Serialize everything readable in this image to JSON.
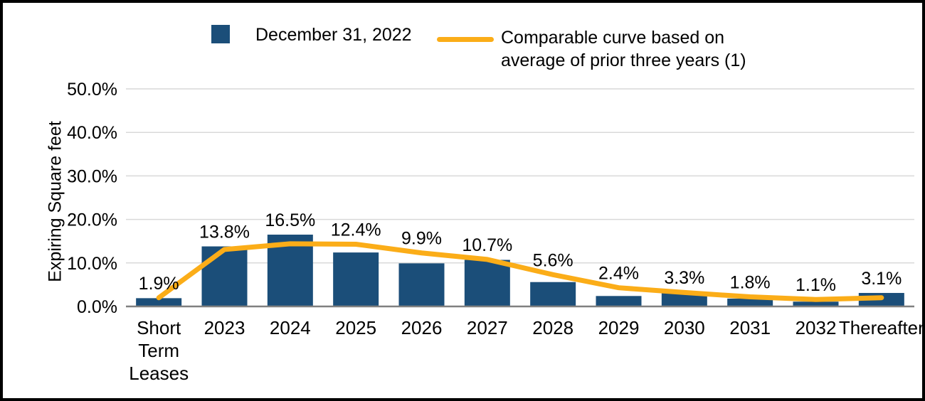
{
  "legend": {
    "bars_label": "December 31, 2022",
    "line_label_line1": "Comparable curve based on",
    "line_label_line2": "average of prior three years (1)"
  },
  "axes": {
    "y_title": "Expiring Square feet"
  },
  "colors": {
    "bar": "#1B4E79",
    "line": "#FBAD18",
    "gridline": "#D9D9D9",
    "axis_line": "#808080"
  },
  "chart_data": {
    "type": "bar",
    "title": "",
    "xlabel": "",
    "ylabel": "Expiring Square feet",
    "ylim": [
      0,
      50
    ],
    "ytick_step": 10,
    "yticks": [
      "0.0%",
      "10.0%",
      "20.0%",
      "30.0%",
      "40.0%",
      "50.0%"
    ],
    "grid": true,
    "legend_position": "top",
    "categories": [
      "Short\nTerm\nLeases",
      "2023",
      "2024",
      "2025",
      "2026",
      "2027",
      "2028",
      "2029",
      "2030",
      "2031",
      "2032",
      "Thereafter"
    ],
    "series": [
      {
        "name": "December 31, 2022",
        "type": "bar",
        "color": "#1B4E79",
        "values": [
          1.9,
          13.8,
          16.5,
          12.4,
          9.9,
          10.7,
          5.6,
          2.4,
          3.3,
          1.8,
          1.1,
          3.1
        ],
        "labels": [
          "1.9%",
          "13.8%",
          "16.5%",
          "12.4%",
          "9.9%",
          "10.7%",
          "5.6%",
          "2.4%",
          "3.3%",
          "1.8%",
          "1.1%",
          "3.1%"
        ]
      },
      {
        "name": "Comparable curve based on average of prior three years (1)",
        "type": "line",
        "color": "#FBAD18",
        "values": [
          2.0,
          13.1,
          14.4,
          14.3,
          12.3,
          10.8,
          7.3,
          4.3,
          3.2,
          2.2,
          1.6,
          2.0
        ]
      }
    ]
  }
}
